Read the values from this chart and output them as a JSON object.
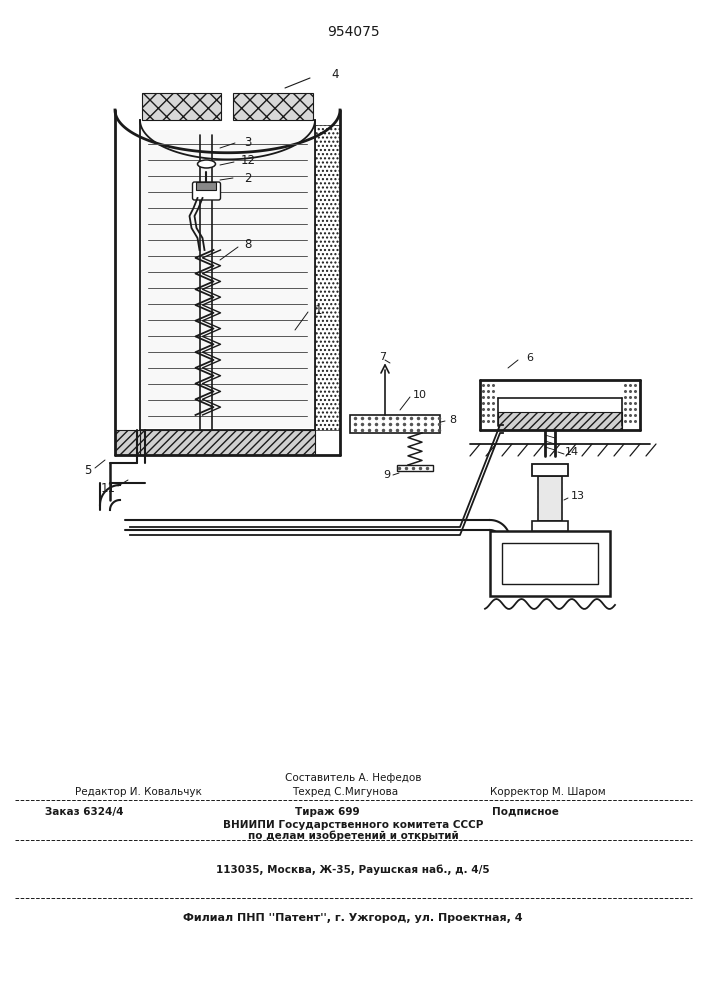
{
  "patent_number": "954075",
  "bg_color": "#ffffff",
  "lc": "#1a1a1a",
  "footer_col_top": "Составитель А. Нефедов",
  "footer_l1_left": "Редактор И. Ковальчук",
  "footer_l1_center": "Техред С.Мигунова",
  "footer_l1_right": "Корректор М. Шаром",
  "footer_l2_left": "Заказ 6324/4",
  "footer_l2_center": "Тираж 699",
  "footer_l2_right": "Подписное",
  "footer_l3": "ВНИИПИ Государственного комитета СССР",
  "footer_l4": "по делам изобретений и открытий",
  "footer_l5": "113035, Москва, Ж-35, Раушская наб., д. 4/5",
  "footer_l6": "Филиал ПНП ''Патент'', г. Ужгород, ул. Проектная, 4",
  "tank_OL": 115,
  "tank_OR": 340,
  "tank_OT": 85,
  "tank_OB": 455,
  "tank_wall": 25
}
